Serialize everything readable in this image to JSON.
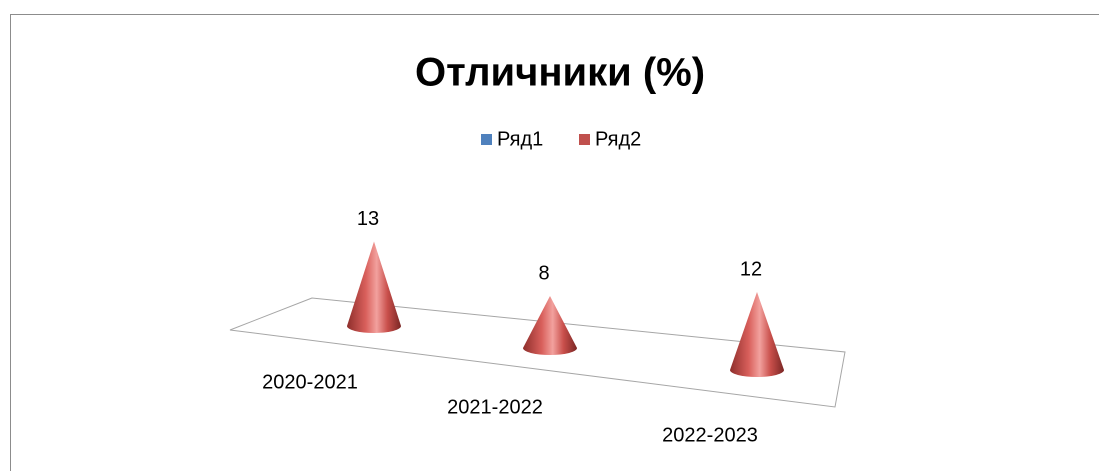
{
  "chart_data": {
    "type": "cone",
    "title": "Отличники (%)",
    "categories": [
      "2020-2021",
      "2021-2022",
      "2022-2023"
    ],
    "series": [
      {
        "name": "Ряд1",
        "color": "#4f81bd",
        "values": [
          null,
          null,
          null
        ]
      },
      {
        "name": "Ряд2",
        "color": "#c0504d",
        "values": [
          13,
          8,
          12
        ]
      }
    ]
  }
}
